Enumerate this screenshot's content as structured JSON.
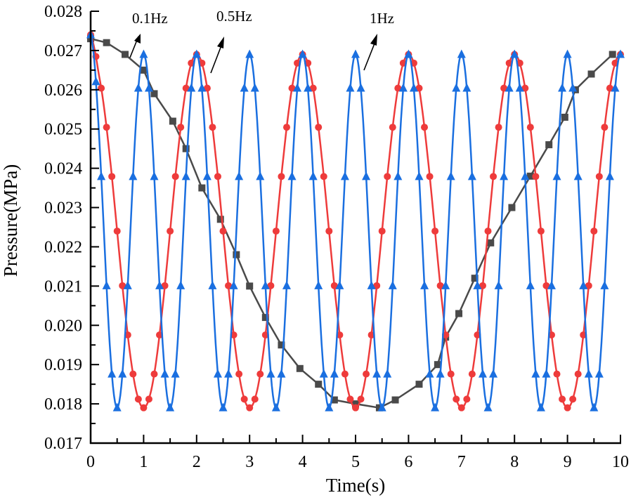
{
  "chart_data": {
    "type": "line",
    "title": "",
    "xlabel": "Time(s)",
    "ylabel": "Pressure(MPa)",
    "xlim": [
      0,
      10
    ],
    "ylim": [
      0.017,
      0.028
    ],
    "xticks": [
      "0",
      "1",
      "2",
      "3",
      "4",
      "5",
      "6",
      "7",
      "8",
      "9",
      "10"
    ],
    "yticks": [
      "0.017",
      "0.018",
      "0.019",
      "0.020",
      "0.021",
      "0.022",
      "0.023",
      "0.024",
      "0.025",
      "0.026",
      "0.027",
      "0.028"
    ],
    "grid": false,
    "legend": "none",
    "annotations": [
      {
        "text": "0.1Hz",
        "series": "0.1Hz"
      },
      {
        "text": "0.5Hz",
        "series": "0.5Hz"
      },
      {
        "text": "1Hz",
        "series": "1Hz"
      }
    ],
    "series": [
      {
        "name": "0.1Hz",
        "color": "#4a4a4a",
        "marker": "square",
        "x": [
          0,
          0.3,
          0.65,
          1.0,
          1.2,
          1.55,
          1.8,
          2.1,
          2.45,
          2.75,
          3.0,
          3.3,
          3.6,
          3.95,
          4.3,
          4.6,
          5.0,
          5.45,
          5.75,
          6.2,
          6.55,
          6.7,
          6.95,
          7.25,
          7.55,
          7.95,
          8.3,
          8.65,
          8.95,
          9.15,
          9.45,
          9.85
        ],
        "y": [
          0.0273,
          0.0272,
          0.0269,
          0.0265,
          0.0259,
          0.0252,
          0.0245,
          0.0235,
          0.0227,
          0.0218,
          0.021,
          0.0202,
          0.0195,
          0.0189,
          0.0185,
          0.0181,
          0.018,
          0.0179,
          0.0181,
          0.0185,
          0.019,
          0.0197,
          0.0203,
          0.0212,
          0.0221,
          0.023,
          0.0238,
          0.0246,
          0.0253,
          0.026,
          0.0264,
          0.0269
        ]
      },
      {
        "name": "0.5Hz",
        "color": "#ee3b3b",
        "marker": "circle",
        "frequency_hz": 0.5,
        "y_max": 0.0269,
        "y_min": 0.0179,
        "start_y": 0.0274,
        "sample_step_s": 0.1
      },
      {
        "name": "1Hz",
        "color": "#1a6fe0",
        "marker": "triangle",
        "frequency_hz": 1.0,
        "y_max": 0.0269,
        "y_min": 0.0179,
        "start_y": 0.0274,
        "sample_step_s": 0.1
      }
    ]
  }
}
